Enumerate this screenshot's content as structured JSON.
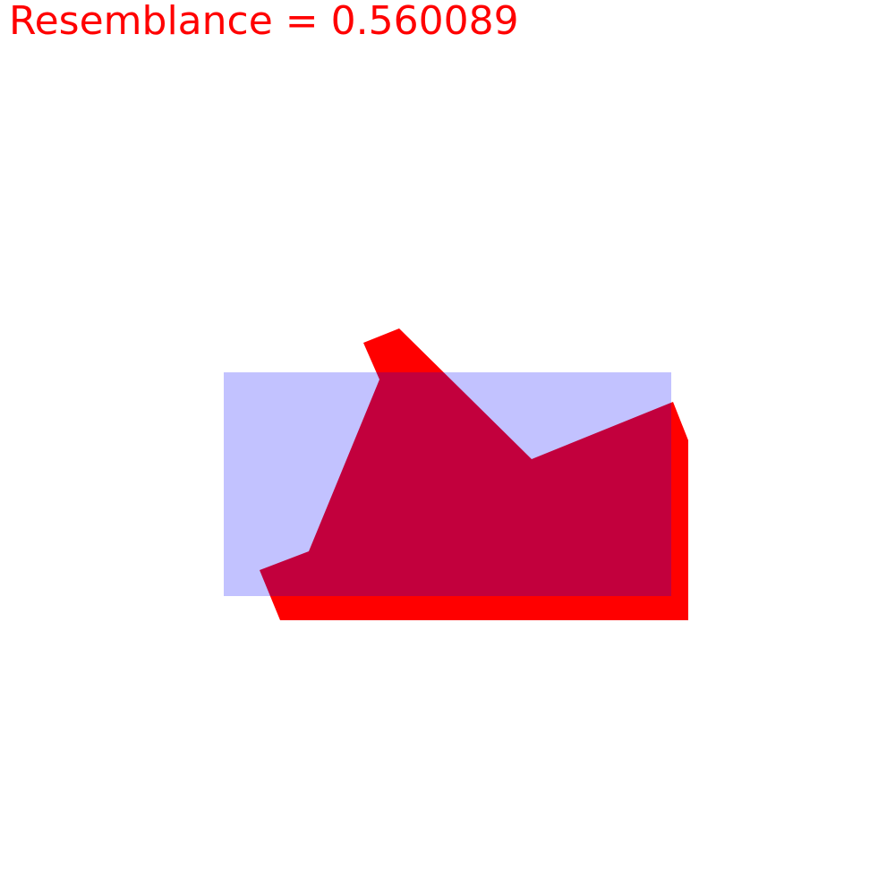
{
  "score": {
    "text": "Resemblance = 0.560089",
    "color": "#ff0000"
  },
  "shapes": {
    "rectangle": {
      "fill": "#0000ff",
      "opacity": 0.24
    },
    "polygon": {
      "fill": "#ff0000",
      "overlap_color": "#c2003c"
    }
  }
}
